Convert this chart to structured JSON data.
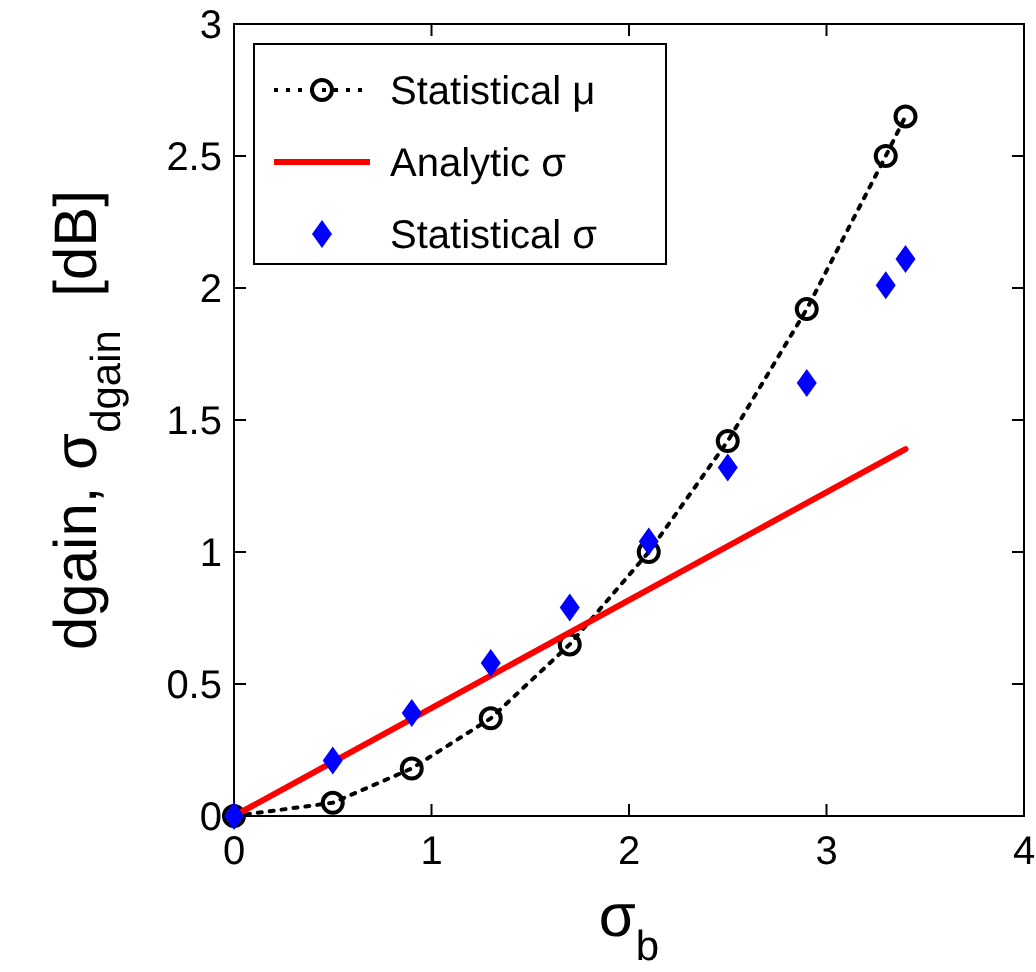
{
  "chart_data": {
    "type": "line",
    "xlabel": "σ$_{b}$",
    "ylabel": "dgain, σ$_{dgain}$  [dB]",
    "xlim": [
      0,
      4
    ],
    "ylim": [
      0,
      3
    ],
    "xticks": [
      0,
      1,
      2,
      3,
      4
    ],
    "yticks": [
      0,
      0.5,
      1,
      1.5,
      2,
      2.5,
      3
    ],
    "grid": false,
    "legend": "top left",
    "series": [
      {
        "name": "Statistical μ",
        "type": "line",
        "color": "#000000",
        "marker": "circle",
        "line_style": "dotted",
        "x": [
          0,
          0.5,
          0.9,
          1.3,
          1.7,
          2.1,
          2.5,
          2.9,
          3.3,
          3.4
        ],
        "values": [
          0,
          0.05,
          0.18,
          0.37,
          0.65,
          1.0,
          1.42,
          1.92,
          2.5,
          2.65
        ]
      },
      {
        "name": "Analytic σ",
        "type": "line",
        "color": "#ff0000",
        "marker": "none",
        "line_style": "solid",
        "x": [
          0,
          3.4
        ],
        "values": [
          0,
          1.39
        ]
      },
      {
        "name": "Statistical σ",
        "type": "scatter",
        "color": "#0000ff",
        "marker": "diamond",
        "x": [
          0,
          0.5,
          0.9,
          1.3,
          1.7,
          2.1,
          2.5,
          2.9,
          3.3,
          3.4
        ],
        "values": [
          0,
          0.21,
          0.39,
          0.58,
          0.79,
          1.04,
          1.32,
          1.64,
          2.01,
          2.11
        ]
      }
    ]
  }
}
